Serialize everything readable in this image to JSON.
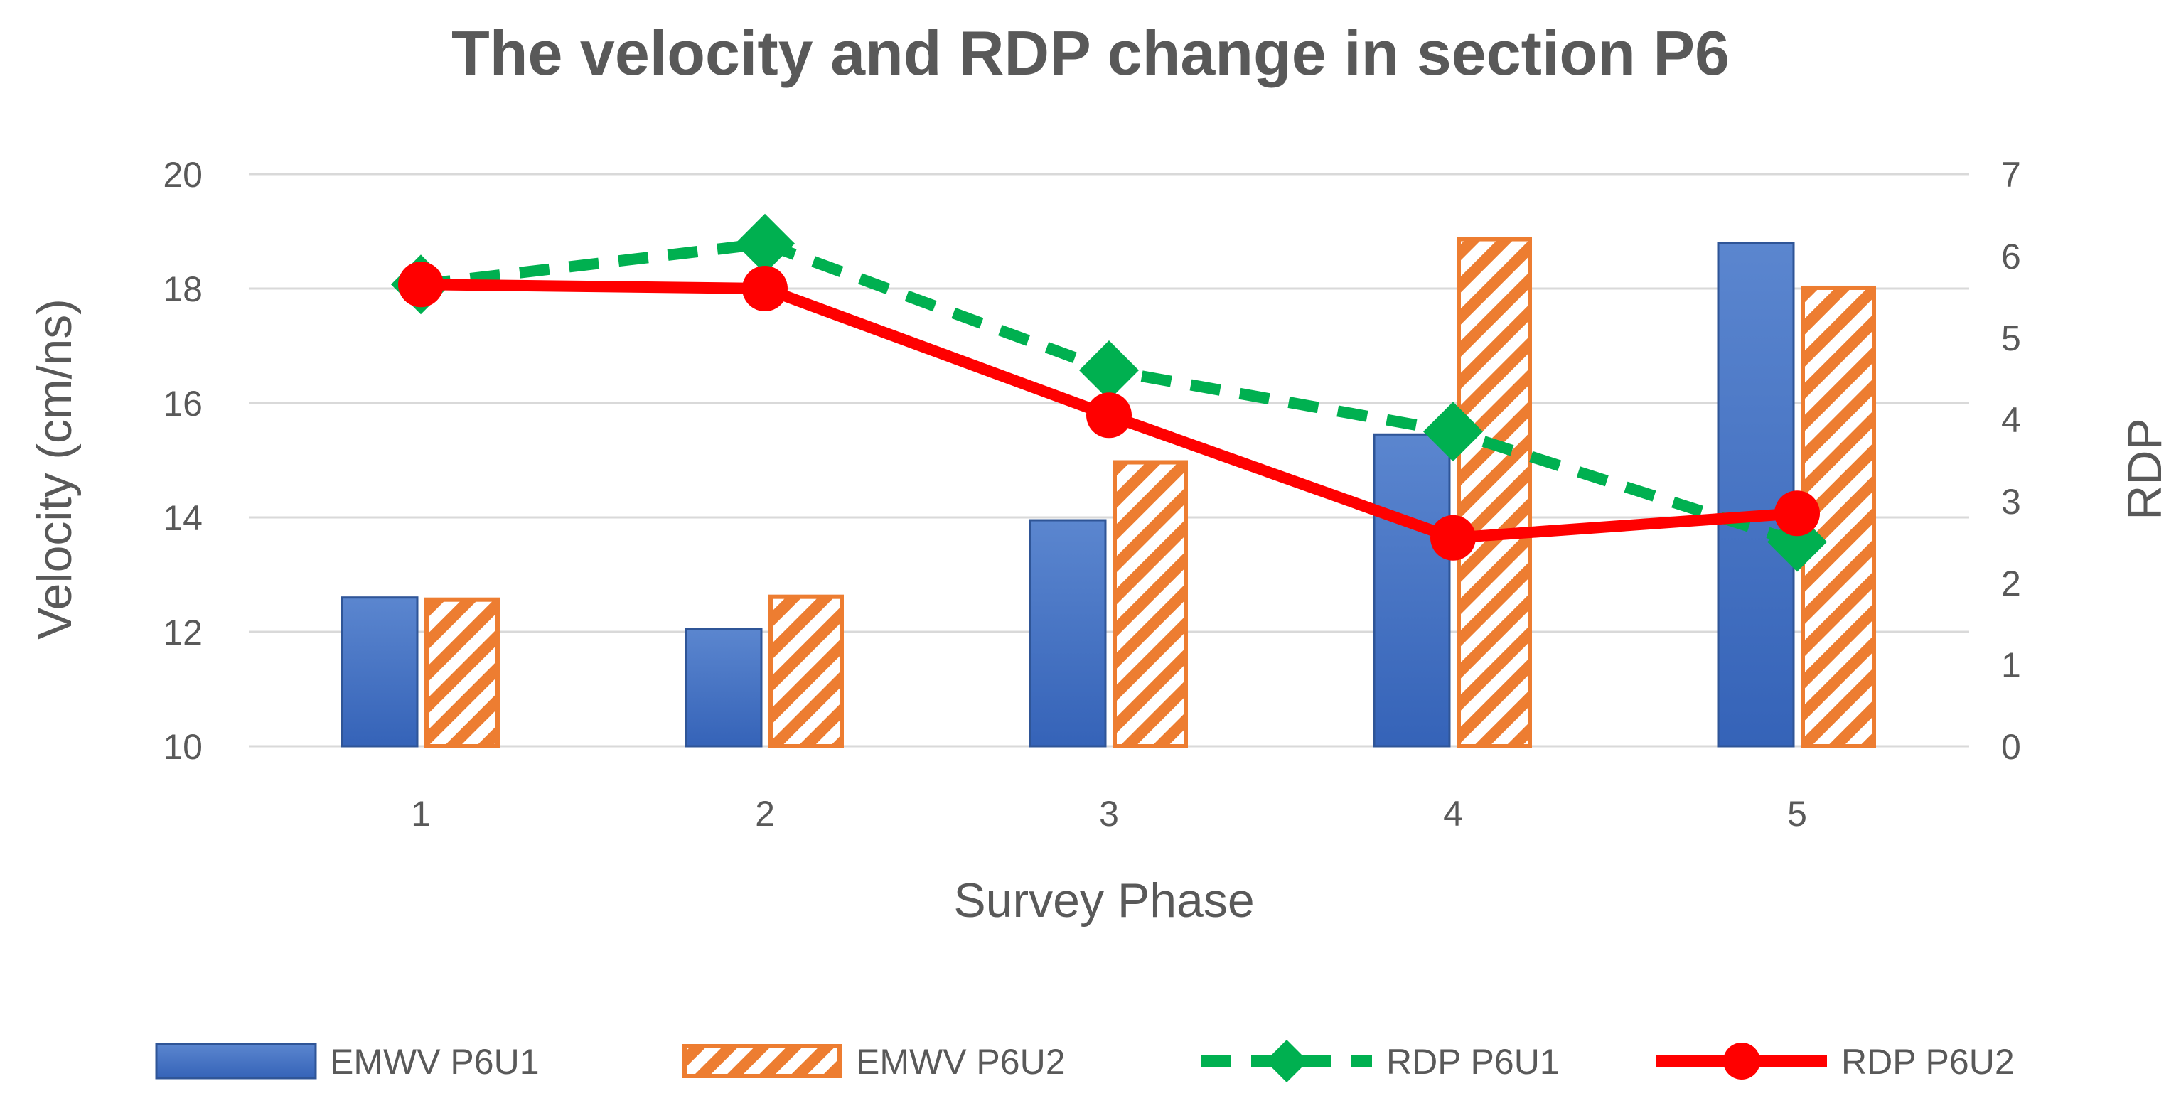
{
  "chart_data": {
    "type": "bar",
    "title": "The velocity and RDP change in section P6",
    "xlabel": "Survey Phase",
    "ylabel": "Velocity  (cm/ns)",
    "y2label": "RDP",
    "categories": [
      "1",
      "2",
      "3",
      "4",
      "5"
    ],
    "ylim": [
      10,
      20
    ],
    "y_ticks": [
      "10",
      "12",
      "14",
      "16",
      "18",
      "20"
    ],
    "y2lim": [
      0,
      7
    ],
    "y2_ticks": [
      "0",
      "1",
      "2",
      "3",
      "4",
      "5",
      "6",
      "7"
    ],
    "grid": true,
    "legend_position": "bottom",
    "series": [
      {
        "name": "EMWV P6U1",
        "type": "bar",
        "axis": "left",
        "style": "solid",
        "color": "#4472C4",
        "values": [
          12.6,
          12.05,
          13.95,
          15.45,
          18.8
        ]
      },
      {
        "name": "EMWV P6U2",
        "type": "bar",
        "axis": "left",
        "style": "hatched",
        "color": "#ED7D31",
        "values": [
          12.6,
          12.65,
          15.0,
          18.9,
          18.05
        ]
      },
      {
        "name": "RDP P6U1",
        "type": "line",
        "axis": "right",
        "style": "dashed-diamond",
        "color": "#00B050",
        "values": [
          5.65,
          6.15,
          4.6,
          3.85,
          2.5
        ]
      },
      {
        "name": "RDP P6U2",
        "type": "line",
        "axis": "right",
        "style": "solid-circle",
        "color": "#FF0000",
        "values": [
          5.65,
          5.6,
          4.05,
          2.55,
          2.85
        ]
      }
    ]
  }
}
